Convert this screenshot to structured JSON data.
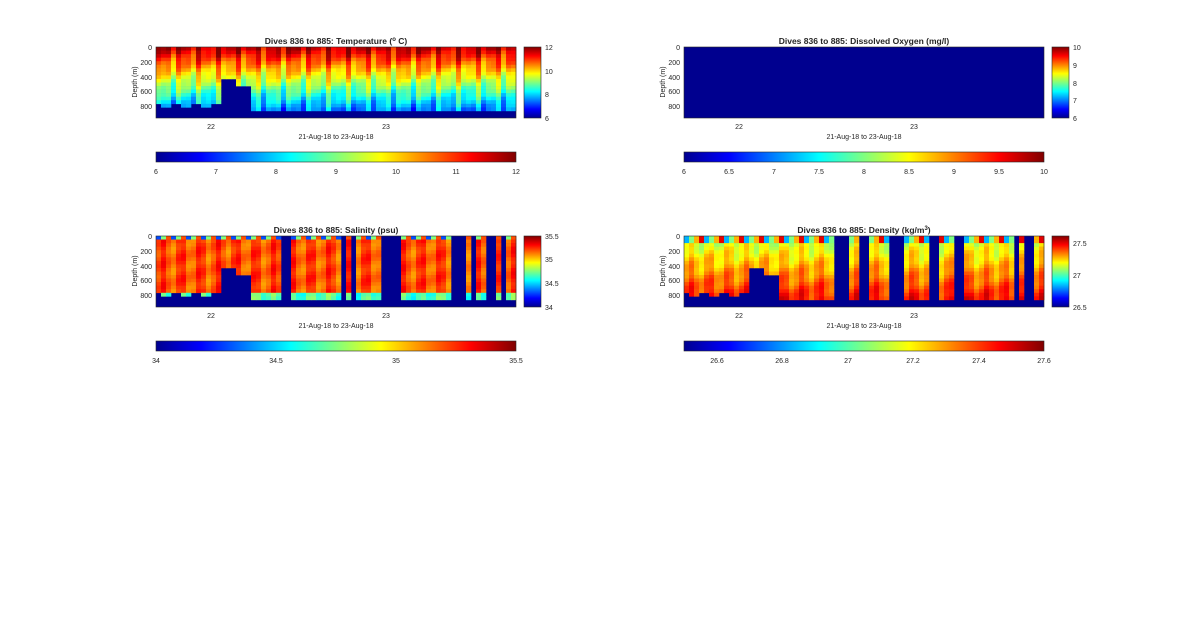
{
  "chart_data": [
    {
      "type": "heatmap",
      "title_main": "Dives 836 to 885: Temperature (",
      "title_sup": "o",
      "title_tail": " C)",
      "ylabel": "Depth (m)",
      "xlabel": "21-Aug-18 to 23-Aug-18",
      "yticks": [
        "0",
        "200",
        "400",
        "600",
        "800"
      ],
      "xticks": [
        "22",
        "23"
      ],
      "colorbar_ticks": [
        "12",
        "10",
        "8",
        "6"
      ],
      "hcolorbar_ticks": [
        "6",
        "7",
        "8",
        "9",
        "10",
        "11",
        "12"
      ],
      "clim": [
        6,
        12
      ],
      "depth_range": [
        0,
        950
      ],
      "pattern": "temperature",
      "colormap": "jet"
    },
    {
      "type": "heatmap",
      "title_main": "Dives 836 to 885: Dissolved Oxygen (mg/l)",
      "ylabel": "Depth (m)",
      "xlabel": "21-Aug-18 to 23-Aug-18",
      "yticks": [
        "0",
        "200",
        "400",
        "600",
        "800"
      ],
      "xticks": [
        "22",
        "23"
      ],
      "colorbar_ticks": [
        "10",
        "9",
        "8",
        "7",
        "6"
      ],
      "hcolorbar_ticks": [
        "6",
        "6.5",
        "7",
        "7.5",
        "8",
        "8.5",
        "9",
        "9.5",
        "10"
      ],
      "clim": [
        6,
        10
      ],
      "depth_range": [
        0,
        950
      ],
      "pattern": "oxygen",
      "colormap": "jet"
    },
    {
      "type": "heatmap",
      "title_main": "Dives 836 to 885: Salinity (psu)",
      "ylabel": "Depth (m)",
      "xlabel": "21-Aug-18 to 23-Aug-18",
      "yticks": [
        "0",
        "200",
        "400",
        "600",
        "800"
      ],
      "xticks": [
        "22",
        "23"
      ],
      "colorbar_ticks": [
        "35.5",
        "35",
        "34.5",
        "34"
      ],
      "hcolorbar_ticks": [
        "34",
        "34.5",
        "35",
        "35.5"
      ],
      "clim": [
        34,
        35.5
      ],
      "depth_range": [
        0,
        950
      ],
      "pattern": "salinity",
      "colormap": "jet"
    },
    {
      "type": "heatmap",
      "title_main": "Dives 836 to 885: Density (kg/m",
      "title_sup": "3",
      "title_tail": ")",
      "ylabel": "Depth (m)",
      "xlabel": "21-Aug-18 to 23-Aug-18",
      "yticks": [
        "0",
        "200",
        "400",
        "600",
        "800"
      ],
      "xticks": [
        "22",
        "23"
      ],
      "colorbar_ticks": [
        "27.5",
        "27",
        "26.5"
      ],
      "hcolorbar_ticks": [
        "26.6",
        "26.8",
        "27",
        "27.2",
        "27.4",
        "27.6"
      ],
      "clim": [
        26.5,
        27.6
      ],
      "depth_range": [
        0,
        950
      ],
      "pattern": "density",
      "colormap": "jet"
    }
  ]
}
